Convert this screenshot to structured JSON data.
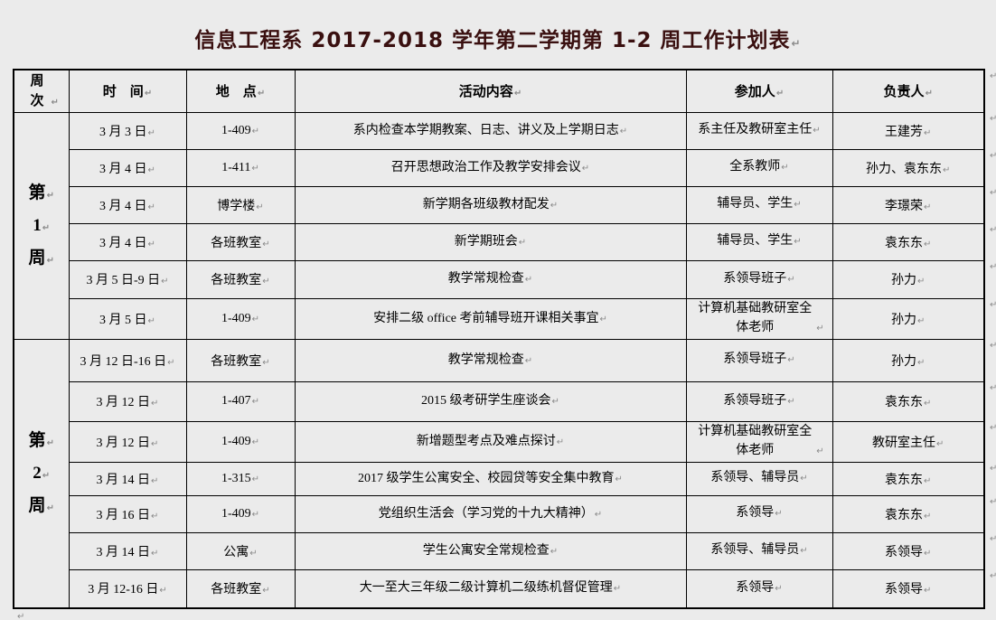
{
  "page": {
    "title": "信息工程系 2017-2018 学年第二学期第 1-2 周工作计划表"
  },
  "colors": {
    "background": "#ebebeb",
    "title_text": "#3a1010",
    "table_border": "#000000",
    "body_text": "#000000",
    "formatting_mark": "#8a8a8a"
  },
  "icons": {
    "paragraph_mark": "↵"
  },
  "table": {
    "headers": [
      "周次",
      "时　间",
      "地　点",
      "活动内容",
      "参加人",
      "负责人"
    ],
    "weeks": [
      {
        "label": "第1周",
        "label_chars": [
          "第",
          "1",
          "周"
        ],
        "rows": [
          {
            "time": "3 月 3 日",
            "location": "1-409",
            "activity": "系内检查本学期教案、日志、讲义及上学期日志",
            "participants": "系主任及教研室主任",
            "responsible": "王建芳"
          },
          {
            "time": "3 月 4 日",
            "location": "1-411",
            "activity": "召开思想政治工作及教学安排会议",
            "participants": "全系教师",
            "responsible": "孙力、袁东东"
          },
          {
            "time": "3 月 4 日",
            "location": "博学楼",
            "activity": "新学期各班级教材配发",
            "participants": "辅导员、学生",
            "responsible": "李璟荣"
          },
          {
            "time": "3 月 4 日",
            "location": "各班教室",
            "activity": "新学期班会",
            "participants": "辅导员、学生",
            "responsible": "袁东东"
          },
          {
            "time": "3 月 5 日-9 日",
            "location": "各班教室",
            "activity": "教学常规检查",
            "participants": "系领导班子",
            "responsible": "孙力"
          },
          {
            "time": "3 月 5 日",
            "location": "1-409",
            "activity": "安排二级 office 考前辅导班开课相关事宜",
            "participants": "计算机基础教研室全体老师",
            "responsible": "孙力"
          }
        ]
      },
      {
        "label": "第2周",
        "label_chars": [
          "第",
          "2",
          "周"
        ],
        "rows": [
          {
            "time": "3 月 12 日-16 日",
            "location": "各班教室",
            "activity": "教学常规检查",
            "participants": "系领导班子",
            "responsible": "孙力"
          },
          {
            "time": "3 月 12 日",
            "location": "1-407",
            "activity": "2015 级考研学生座谈会",
            "participants": "系领导班子",
            "responsible": "袁东东"
          },
          {
            "time": "3 月 12 日",
            "location": "1-409",
            "activity": "新增题型考点及难点探讨",
            "participants": "计算机基础教研室全体老师",
            "responsible": "教研室主任"
          },
          {
            "time": "3 月 14 日",
            "location": "1-315",
            "activity": "2017 级学生公寓安全、校园贷等安全集中教育",
            "participants": "系领导、辅导员",
            "responsible": "袁东东"
          },
          {
            "time": "3 月 16 日",
            "location": "1-409",
            "activity": "党组织生活会（学习党的十九大精神）",
            "participants": "系领导",
            "responsible": "袁东东"
          },
          {
            "time": "3 月 14 日",
            "location": "公寓",
            "activity": "学生公寓安全常规检查",
            "participants": "系领导、辅导员",
            "responsible": "系领导"
          },
          {
            "time": "3 月 12-16 日",
            "location": "各班教室",
            "activity": "大一至大三年级二级计算机二级练机督促管理",
            "participants": "系领导",
            "responsible": "系领导"
          }
        ]
      }
    ]
  }
}
